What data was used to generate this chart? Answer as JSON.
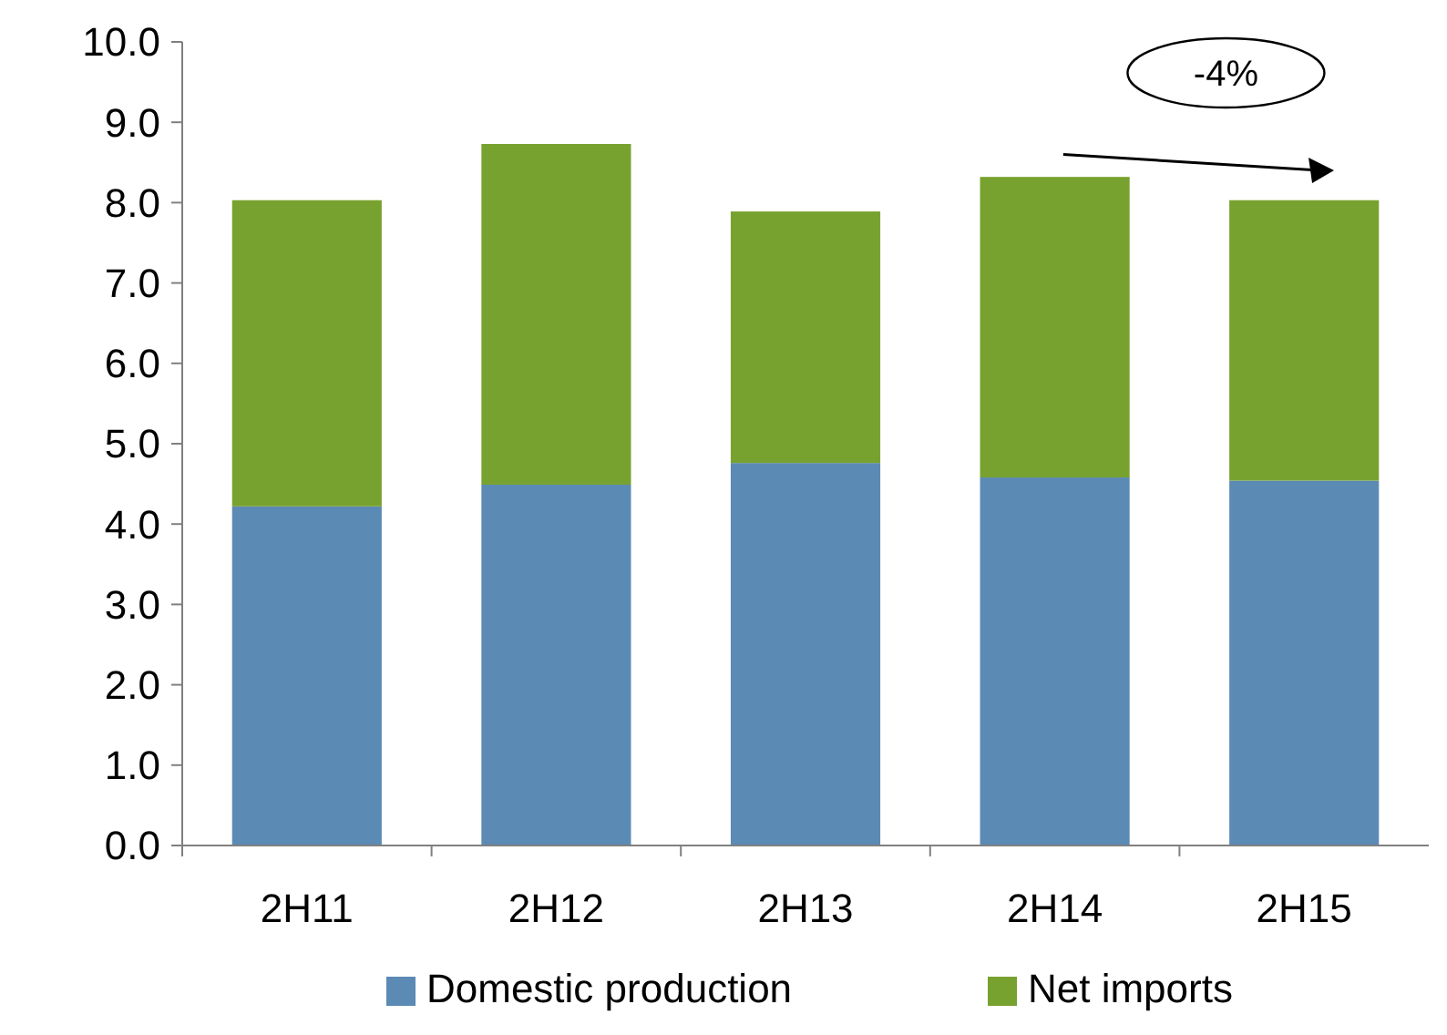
{
  "chart_data": {
    "type": "bar",
    "stacked": true,
    "categories": [
      "2H11",
      "2H12",
      "2H13",
      "2H14",
      "2H15"
    ],
    "series": [
      {
        "name": "Domestic production",
        "color": "#5b8ab5",
        "values": [
          4.22,
          4.49,
          4.76,
          4.58,
          4.54
        ]
      },
      {
        "name": "Net imports",
        "color": "#78a22f",
        "values": [
          3.81,
          4.24,
          3.13,
          3.74,
          3.49
        ]
      }
    ],
    "ylim": [
      0,
      10
    ],
    "yticks": [
      {
        "value": 0,
        "label": "0.0"
      },
      {
        "value": 1,
        "label": "1.0"
      },
      {
        "value": 2,
        "label": "2.0"
      },
      {
        "value": 3,
        "label": "3.0"
      },
      {
        "value": 4,
        "label": "4.0"
      },
      {
        "value": 5,
        "label": "5.0"
      },
      {
        "value": 6,
        "label": "6.0"
      },
      {
        "value": 7,
        "label": "7.0"
      },
      {
        "value": 8,
        "label": "8.0"
      },
      {
        "value": 9,
        "label": "9.0"
      },
      {
        "value": 10,
        "label": "10.0"
      }
    ],
    "annotations": [
      "-4%"
    ],
    "legend": "bottom",
    "grid": false
  }
}
